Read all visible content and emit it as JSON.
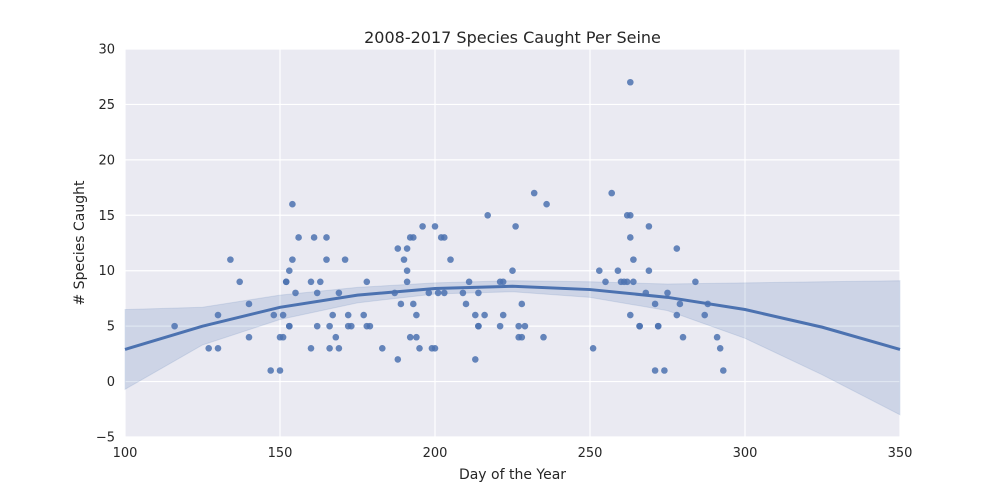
{
  "chart_data": {
    "type": "scatter",
    "title": "2008-2017 Species Caught Per Seine",
    "xlabel": "Day of the Year",
    "ylabel": "# Species Caught",
    "xlim": [
      100,
      350
    ],
    "ylim": [
      -5,
      30
    ],
    "xticks": [
      100,
      150,
      200,
      250,
      300,
      350
    ],
    "yticks": [
      -5,
      0,
      5,
      10,
      15,
      20,
      25,
      30
    ],
    "grid": true,
    "colors": {
      "background": "#eaeaf2",
      "grid": "#ffffff",
      "points": "#4c72b0",
      "fit_line": "#4c72b0",
      "ci_band": "#4c72b0"
    },
    "series": [
      {
        "values": [
          [
            116,
            5
          ],
          [
            127,
            3
          ],
          [
            130,
            6
          ],
          [
            130,
            3
          ],
          [
            134,
            11
          ],
          [
            137,
            9
          ],
          [
            140,
            7
          ],
          [
            140,
            4
          ],
          [
            147,
            1
          ],
          [
            148,
            6
          ],
          [
            150,
            4
          ],
          [
            150,
            1
          ],
          [
            151,
            4
          ],
          [
            151,
            6
          ],
          [
            152,
            9
          ],
          [
            152,
            9
          ],
          [
            153,
            5
          ],
          [
            153,
            5
          ],
          [
            153,
            10
          ],
          [
            154,
            11
          ],
          [
            154,
            16
          ],
          [
            155,
            8
          ],
          [
            156,
            13
          ],
          [
            160,
            9
          ],
          [
            160,
            3
          ],
          [
            161,
            13
          ],
          [
            162,
            5
          ],
          [
            162,
            8
          ],
          [
            163,
            9
          ],
          [
            165,
            11
          ],
          [
            165,
            13
          ],
          [
            166,
            5
          ],
          [
            166,
            3
          ],
          [
            167,
            6
          ],
          [
            168,
            4
          ],
          [
            169,
            8
          ],
          [
            169,
            3
          ],
          [
            171,
            11
          ],
          [
            172,
            5
          ],
          [
            172,
            6
          ],
          [
            173,
            5
          ],
          [
            177,
            6
          ],
          [
            178,
            9
          ],
          [
            178,
            5
          ],
          [
            179,
            5
          ],
          [
            183,
            3
          ],
          [
            187,
            8
          ],
          [
            188,
            2
          ],
          [
            188,
            12
          ],
          [
            189,
            7
          ],
          [
            190,
            11
          ],
          [
            191,
            9
          ],
          [
            191,
            10
          ],
          [
            191,
            12
          ],
          [
            192,
            13
          ],
          [
            192,
            4
          ],
          [
            193,
            13
          ],
          [
            193,
            7
          ],
          [
            194,
            6
          ],
          [
            194,
            4
          ],
          [
            195,
            3
          ],
          [
            196,
            14
          ],
          [
            198,
            8
          ],
          [
            199,
            3
          ],
          [
            200,
            3
          ],
          [
            200,
            14
          ],
          [
            201,
            8
          ],
          [
            202,
            13
          ],
          [
            203,
            13
          ],
          [
            203,
            8
          ],
          [
            205,
            11
          ],
          [
            209,
            8
          ],
          [
            210,
            7
          ],
          [
            211,
            9
          ],
          [
            213,
            2
          ],
          [
            213,
            6
          ],
          [
            214,
            5
          ],
          [
            214,
            5
          ],
          [
            214,
            8
          ],
          [
            216,
            6
          ],
          [
            217,
            15
          ],
          [
            221,
            5
          ],
          [
            221,
            9
          ],
          [
            222,
            9
          ],
          [
            222,
            6
          ],
          [
            225,
            10
          ],
          [
            226,
            14
          ],
          [
            227,
            5
          ],
          [
            227,
            4
          ],
          [
            228,
            7
          ],
          [
            228,
            4
          ],
          [
            229,
            5
          ],
          [
            232,
            17
          ],
          [
            235,
            4
          ],
          [
            236,
            16
          ],
          [
            251,
            3
          ],
          [
            253,
            10
          ],
          [
            255,
            9
          ],
          [
            257,
            17
          ],
          [
            259,
            10
          ],
          [
            260,
            9
          ],
          [
            261,
            9
          ],
          [
            262,
            15
          ],
          [
            262,
            9
          ],
          [
            263,
            27
          ],
          [
            263,
            15
          ],
          [
            263,
            13
          ],
          [
            263,
            6
          ],
          [
            264,
            11
          ],
          [
            264,
            9
          ],
          [
            266,
            5
          ],
          [
            266,
            5
          ],
          [
            268,
            8
          ],
          [
            269,
            14
          ],
          [
            269,
            10
          ],
          [
            271,
            7
          ],
          [
            271,
            1
          ],
          [
            272,
            5
          ],
          [
            272,
            5
          ],
          [
            274,
            1
          ],
          [
            275,
            8
          ],
          [
            278,
            6
          ],
          [
            278,
            12
          ],
          [
            279,
            7
          ],
          [
            280,
            4
          ],
          [
            284,
            9
          ],
          [
            287,
            6
          ],
          [
            288,
            7
          ],
          [
            291,
            4
          ],
          [
            292,
            3
          ],
          [
            293,
            1
          ]
        ]
      }
    ],
    "fit": {
      "type": "quadratic",
      "x": [
        100,
        125,
        150,
        175,
        200,
        225,
        250,
        275,
        300,
        325,
        350
      ],
      "y": [
        2.9,
        5.0,
        6.7,
        7.8,
        8.4,
        8.6,
        8.3,
        7.6,
        6.5,
        4.9,
        2.9
      ],
      "ci_lower": [
        -0.7,
        3.3,
        5.6,
        7.1,
        7.9,
        8.1,
        7.6,
        6.4,
        3.9,
        0.6,
        -3.0
      ],
      "ci_upper": [
        6.5,
        6.7,
        7.8,
        8.5,
        8.9,
        9.1,
        9.0,
        8.8,
        8.9,
        9.0,
        9.1
      ]
    }
  }
}
